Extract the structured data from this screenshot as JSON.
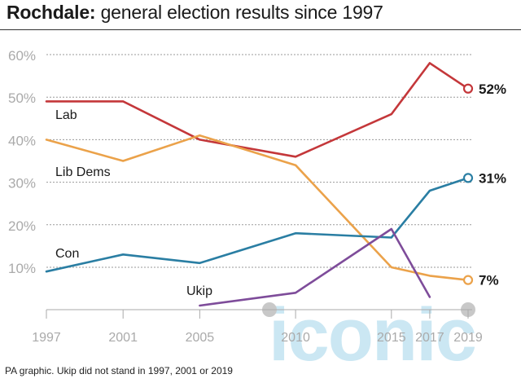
{
  "title": {
    "bold": "Rochdale:",
    "rest": " general election results since 1997"
  },
  "footnote": "PA graphic. Ukip did not stand in 1997, 2001 or 2019",
  "watermark": "iconic",
  "chart_data": {
    "type": "line",
    "title": "Rochdale: general election results since 1997",
    "x": [
      1997,
      2001,
      2005,
      2010,
      2015,
      2017,
      2019
    ],
    "y_ticks": [
      10,
      20,
      30,
      40,
      50,
      60
    ],
    "y_tick_labels": [
      "10%",
      "20%",
      "30%",
      "40%",
      "50%",
      "60%"
    ],
    "x_tick_labels": [
      "1997",
      "2001",
      "2005",
      "2010",
      "2015",
      "2017",
      "2019"
    ],
    "ylim": [
      0,
      62
    ],
    "grid": true,
    "legend": "inline labels",
    "series": [
      {
        "name": "Lab",
        "color": "#c4373a",
        "values": [
          49,
          49,
          40,
          36,
          46,
          58,
          52
        ],
        "end_label": "52%"
      },
      {
        "name": "Lib Dems",
        "color": "#eba24a",
        "values": [
          40,
          35,
          41,
          34,
          10,
          8,
          7
        ],
        "end_label": "7%"
      },
      {
        "name": "Con",
        "color": "#2a7ea3",
        "values": [
          9,
          13,
          11,
          18,
          17,
          28,
          31
        ],
        "end_label": "31%"
      },
      {
        "name": "Ukip",
        "color": "#7e4c9a",
        "values": [
          null,
          null,
          1,
          4,
          19,
          3,
          null
        ]
      }
    ]
  }
}
